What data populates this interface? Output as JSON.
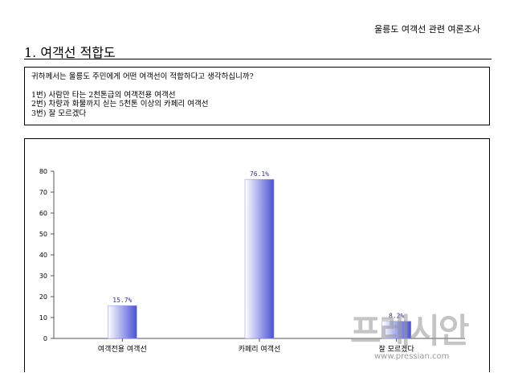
{
  "header": {
    "survey_title": "울릉도 여객선 관련 여론조사"
  },
  "section": {
    "title": "1. 여객선 적합도"
  },
  "question": {
    "prompt": "귀하께서는 울릉도 주민에게 어떤 여객선이 적합하다고 생각하십니까?",
    "options": [
      "1번) 사람만 타는 2천톤급의 여객전용 여객선",
      "2번) 차량과 화물까지 싣는 5천톤 이상의 카페리 여객선",
      "3번) 잘 모르겠다"
    ]
  },
  "chart_data": {
    "type": "bar",
    "categories": [
      "여객전용 여객선",
      "카페리 여객선",
      "잘 모르겠다"
    ],
    "values": [
      15.7,
      76.1,
      8.2
    ],
    "value_labels": [
      "15.7%",
      "76.1%",
      "8.2%"
    ],
    "ylim": [
      0,
      80
    ],
    "yticks": [
      0,
      10,
      20,
      30,
      40,
      50,
      60,
      70,
      80
    ],
    "title": "",
    "xlabel": "",
    "ylabel": "",
    "grid": false,
    "colors": {
      "bar_light": "#ffffff",
      "bar_dark": "#4a52d6",
      "value_label": "#33338a",
      "axis": "#555555"
    }
  },
  "watermark": {
    "logo_text": "프레시안",
    "url": "www.pressian.com"
  }
}
